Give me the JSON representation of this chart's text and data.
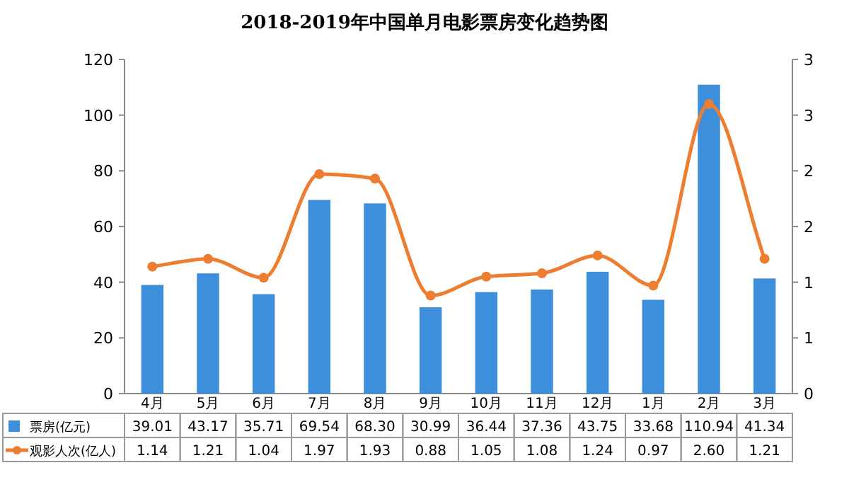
{
  "chart_data": {
    "type": "bar",
    "title": "2018-2019年中国单月电影票房变化趋势图",
    "categories": [
      "4月",
      "5月",
      "6月",
      "7月",
      "8月",
      "9月",
      "10月",
      "11月",
      "12月",
      "1月",
      "2月",
      "3月"
    ],
    "series": [
      {
        "name": "票房(亿元)",
        "color": "#3d8fdc",
        "values": [
          39.01,
          43.17,
          35.71,
          69.54,
          68.3,
          30.99,
          36.44,
          37.36,
          43.75,
          33.68,
          110.94,
          41.34
        ],
        "value_labels": [
          "39.01",
          "43.17",
          "35.71",
          "69.54",
          "68.30",
          "30.99",
          "36.44",
          "37.36",
          "43.75",
          "33.68",
          "110.94",
          "41.34"
        ]
      },
      {
        "name": "观影人次(亿人)",
        "type": "line",
        "axis": "y2",
        "color": "#ed7d31",
        "marker": "circle",
        "values": [
          1.14,
          1.21,
          1.04,
          1.97,
          1.93,
          0.88,
          1.05,
          1.08,
          1.24,
          0.97,
          2.6,
          1.21
        ],
        "value_labels": [
          "1.14",
          "1.21",
          "1.04",
          "1.97",
          "1.93",
          "0.88",
          "1.05",
          "1.08",
          "1.24",
          "0.97",
          "2.60",
          "1.21"
        ]
      }
    ],
    "ylim": [
      0,
      120
    ],
    "yticks": [
      0,
      20,
      40,
      60,
      80,
      100,
      120
    ],
    "y2lim": [
      0,
      3
    ],
    "y2ticks": [
      0,
      {
        "value": 0.5,
        "label": "1"
      },
      1,
      {
        "value": 1.5,
        "label": "2"
      },
      2,
      {
        "value": 2.5,
        "label": "3"
      },
      3
    ],
    "grid": false,
    "legend": "bottom"
  }
}
